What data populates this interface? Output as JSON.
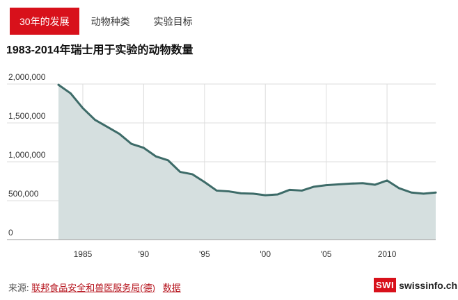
{
  "tabs": [
    {
      "label": "30年的发展",
      "active": true
    },
    {
      "label": "动物种类",
      "active": false
    },
    {
      "label": "实验目标",
      "active": false
    }
  ],
  "footer": {
    "source_prefix": "来源:",
    "source_link": "联邦食品安全和兽医服务局(德)",
    "data_link": "数据"
  },
  "logo": {
    "badge": "SWI",
    "text": "swissinfo.ch"
  },
  "colors": {
    "accent": "#d8111b",
    "line": "#3d6b68",
    "area": "#d5dfdf",
    "grid": "#dddddd",
    "link": "#b5121b"
  },
  "chart_data": {
    "type": "area",
    "title": "1983-2014年瑞士用于实验的动物数量",
    "xlabel": "",
    "ylabel": "",
    "x": [
      1983,
      1984,
      1985,
      1986,
      1987,
      1988,
      1989,
      1990,
      1991,
      1992,
      1993,
      1994,
      1995,
      1996,
      1997,
      1998,
      1999,
      2000,
      2001,
      2002,
      2003,
      2004,
      2005,
      2006,
      2007,
      2008,
      2009,
      2010,
      2011,
      2012,
      2013,
      2014
    ],
    "series": [
      {
        "values": [
          1990000,
          1880000,
          1690000,
          1540000,
          1450000,
          1360000,
          1230000,
          1180000,
          1070000,
          1020000,
          870000,
          840000,
          740000,
          630000,
          620000,
          595000,
          590000,
          570000,
          580000,
          640000,
          630000,
          680000,
          700000,
          710000,
          720000,
          725000,
          705000,
          760000,
          660000,
          605000,
          590000,
          605000
        ]
      }
    ],
    "xlim": [
      1983,
      2014
    ],
    "ylim": [
      0,
      2000000
    ],
    "y_ticks": [
      0,
      500000,
      1000000,
      1500000,
      2000000
    ],
    "y_tick_labels": [
      "0",
      "500,000",
      "1,000,000",
      "1,500,000",
      "2,000,000"
    ],
    "x_ticks": [
      1985,
      1990,
      1995,
      2000,
      2005,
      2010
    ],
    "x_tick_labels": [
      "1985",
      "'90",
      "'95",
      "'00",
      "'05",
      "2010"
    ],
    "grid": true,
    "legend": "none"
  }
}
